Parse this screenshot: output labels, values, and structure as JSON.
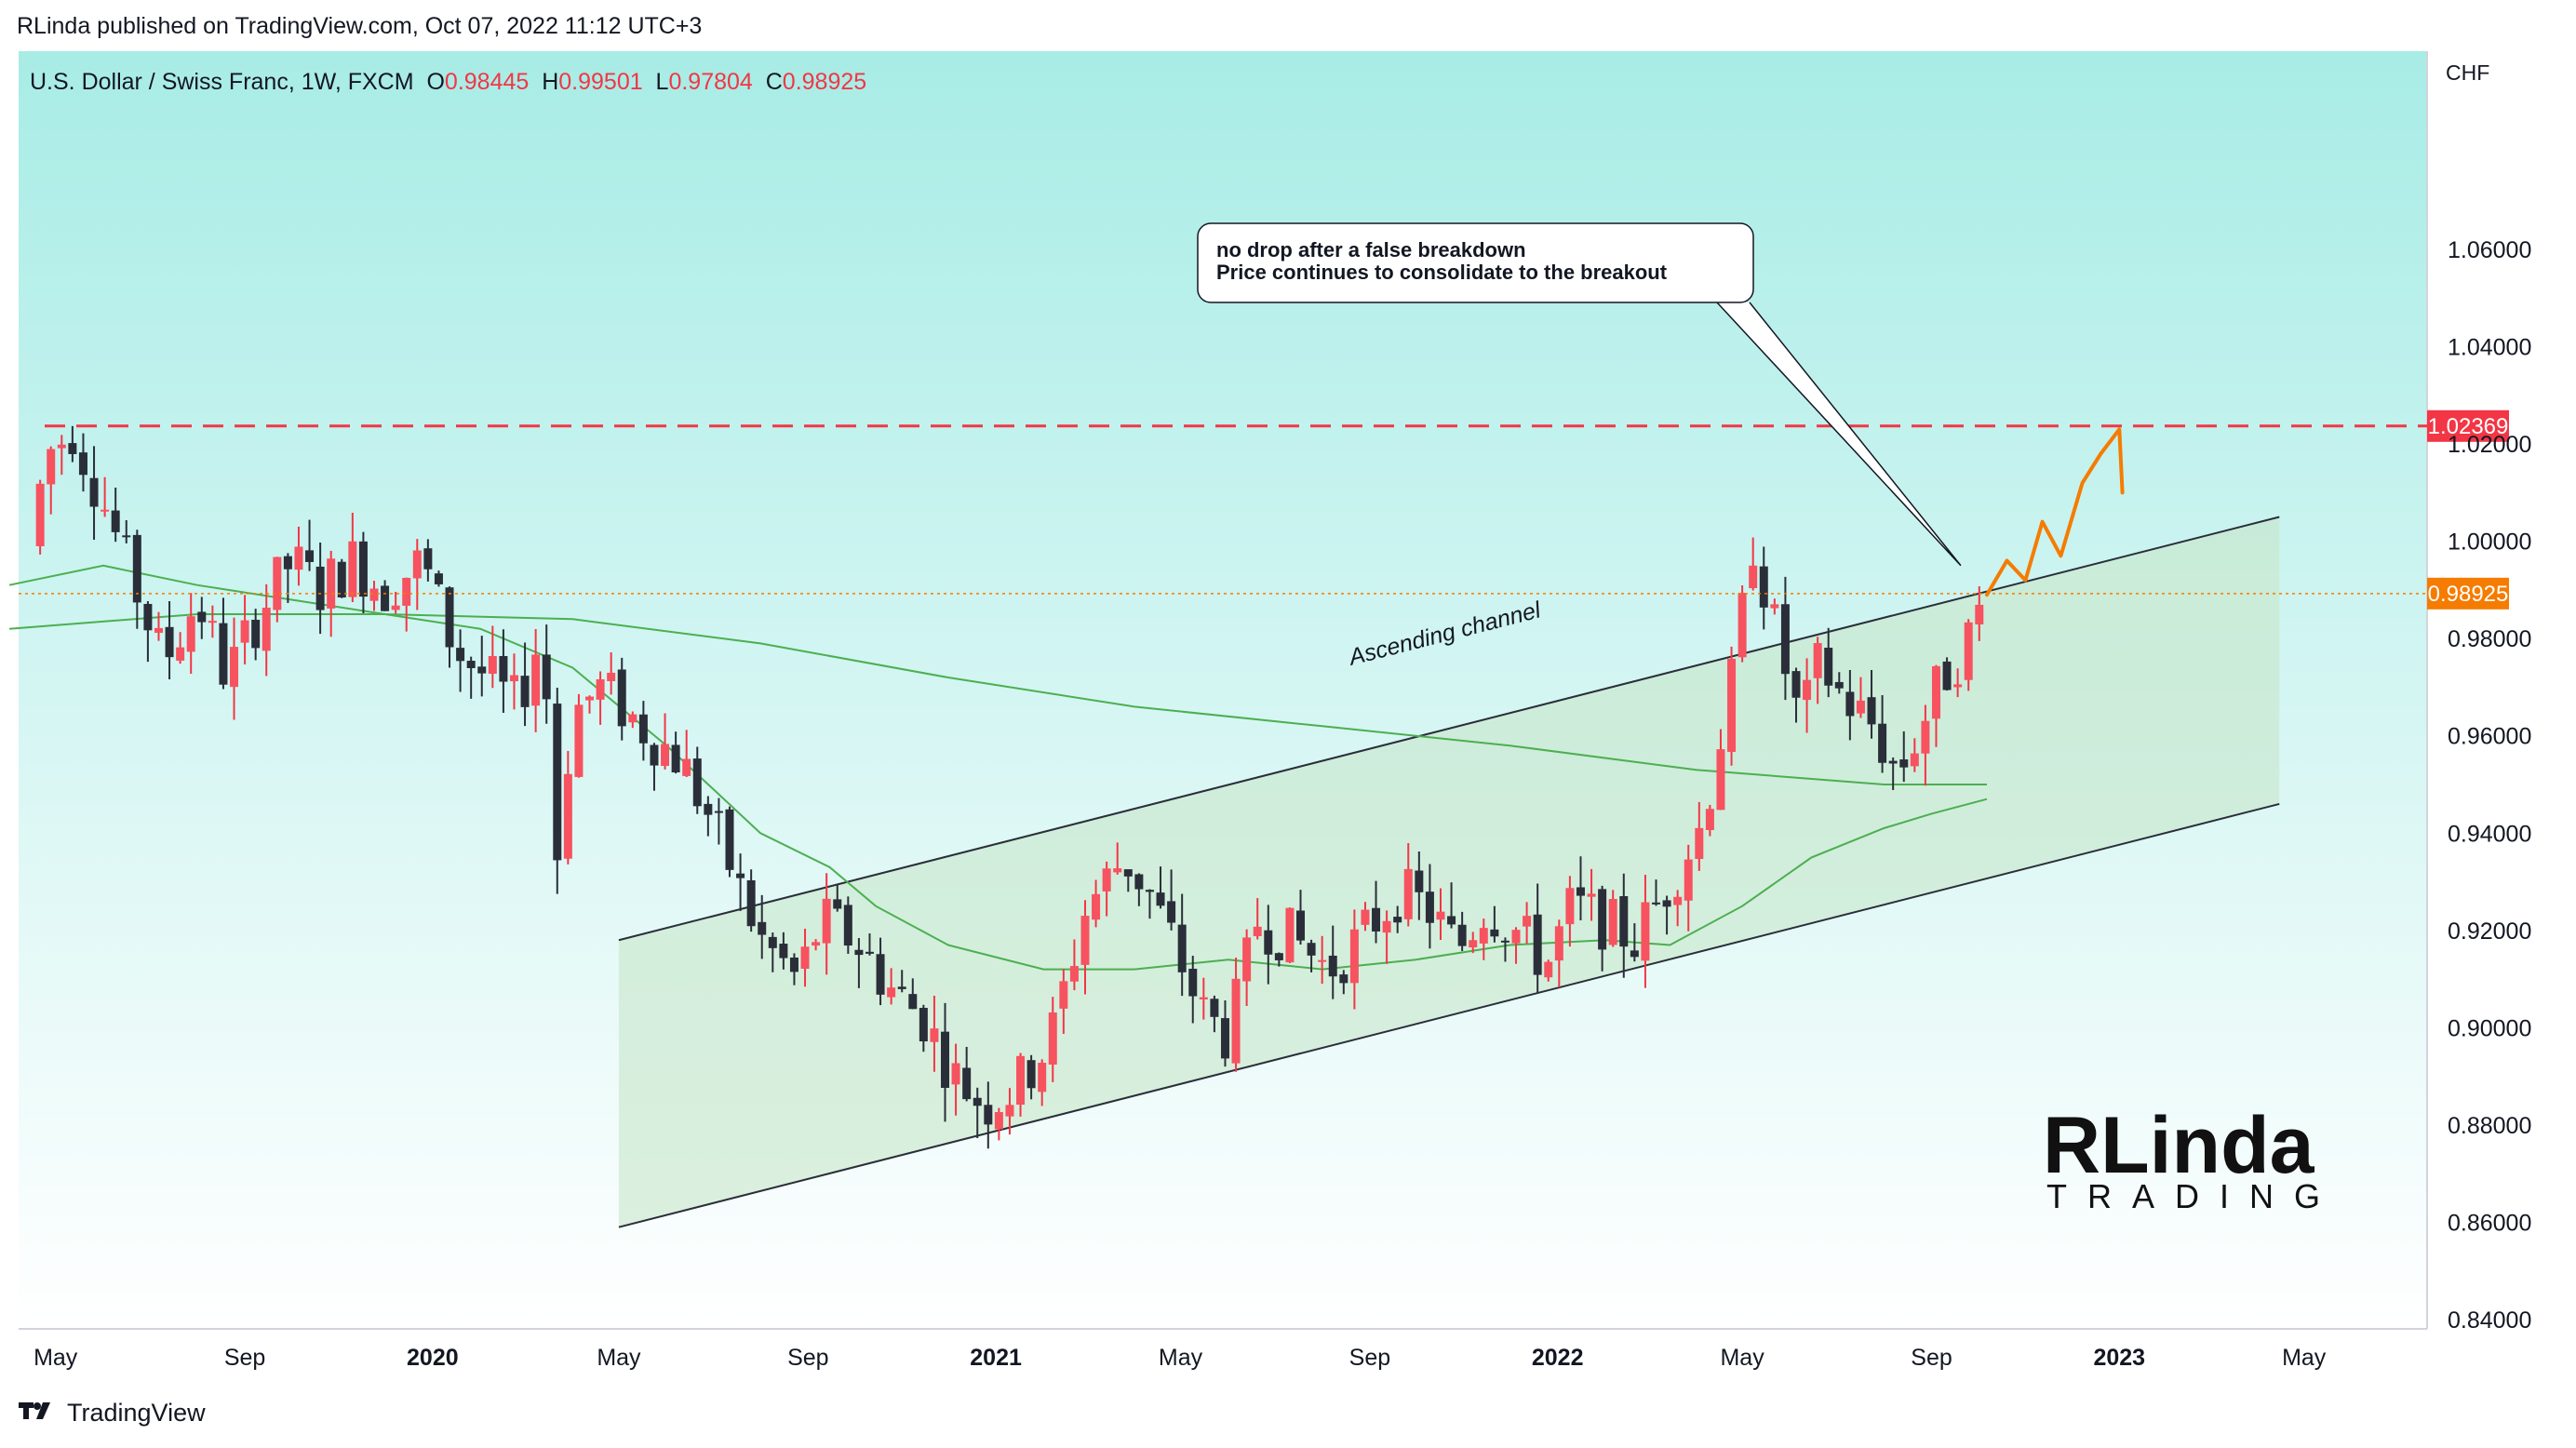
{
  "header": {
    "published": "RLinda published on TradingView.com, Oct 07, 2022 11:12 UTC+3"
  },
  "legend": {
    "symbol": "U.S. Dollar / Swiss Franc, 1W, FXCM",
    "o_label": "O",
    "o_value": "0.98445",
    "h_label": "H",
    "h_value": "0.99501",
    "l_label": "L",
    "l_value": "0.97804",
    "c_label": "C",
    "c_value": "0.98925"
  },
  "footer": {
    "brand": "TradingView",
    "logo_icon": "tradingview-logo-icon"
  },
  "watermark": {
    "line1": "RLinda",
    "line2": "TRADING"
  },
  "colors": {
    "up": "#f23645",
    "up_body": "#f7525f",
    "down": "#2a2e39",
    "ma": "#4caf50",
    "resistance": "#f23645",
    "last_price": "#f57c00",
    "channel_fill": "#c8e6c9",
    "bg_top": "#a8ece6",
    "bg_bottom": "#ffffff"
  },
  "chart_data": {
    "type": "candlestick",
    "unit": "CHF",
    "ylim": [
      0.84,
      1.07
    ],
    "y_ticks": [
      "1.06000",
      "1.04000",
      "1.02000",
      "1.00000",
      "0.98000",
      "0.96000",
      "0.94000",
      "0.92000",
      "0.90000",
      "0.88000",
      "0.86000",
      "0.84000"
    ],
    "y_tick_values": [
      1.06,
      1.04,
      1.02,
      1.0,
      0.98,
      0.96,
      0.94,
      0.92,
      0.9,
      0.88,
      0.86,
      0.84
    ],
    "x_ticks": [
      {
        "label": "May",
        "date": "2019-05-01",
        "bold": false
      },
      {
        "label": "Sep",
        "date": "2019-09-01",
        "bold": false
      },
      {
        "label": "2020",
        "date": "2020-01-01",
        "bold": true
      },
      {
        "label": "May",
        "date": "2020-05-01",
        "bold": false
      },
      {
        "label": "Sep",
        "date": "2020-09-01",
        "bold": false
      },
      {
        "label": "2021",
        "date": "2021-01-01",
        "bold": true
      },
      {
        "label": "May",
        "date": "2021-05-01",
        "bold": false
      },
      {
        "label": "Sep",
        "date": "2021-09-01",
        "bold": false
      },
      {
        "label": "2022",
        "date": "2022-01-01",
        "bold": true
      },
      {
        "label": "May",
        "date": "2022-05-01",
        "bold": false
      },
      {
        "label": "Sep",
        "date": "2022-09-01",
        "bold": false
      },
      {
        "label": "2023",
        "date": "2023-01-01",
        "bold": true
      },
      {
        "label": "May",
        "date": "2023-05-01",
        "bold": false
      }
    ],
    "price_points": [
      [
        "2019-04-14",
        0.999
      ],
      [
        "2019-04-25",
        1.018
      ],
      [
        "2019-05-12",
        1.023
      ],
      [
        "2019-06-01",
        1.008
      ],
      [
        "2019-06-20",
        0.992
      ],
      [
        "2019-07-10",
        0.975
      ],
      [
        "2019-08-01",
        0.988
      ],
      [
        "2019-08-20",
        0.972
      ],
      [
        "2019-09-10",
        0.985
      ],
      [
        "2019-10-01",
        0.996
      ],
      [
        "2019-10-20",
        0.99
      ],
      [
        "2019-11-10",
        0.996
      ],
      [
        "2019-12-01",
        0.99
      ],
      [
        "2019-12-25",
        0.996
      ],
      [
        "2020-01-15",
        0.978
      ],
      [
        "2020-02-05",
        0.972
      ],
      [
        "2020-02-25",
        0.966
      ],
      [
        "2020-03-12",
        0.982
      ],
      [
        "2020-03-22",
        0.936
      ],
      [
        "2020-04-01",
        0.965
      ],
      [
        "2020-04-20",
        0.97
      ],
      [
        "2020-05-15",
        0.962
      ],
      [
        "2020-06-10",
        0.955
      ],
      [
        "2020-07-01",
        0.942
      ],
      [
        "2020-08-01",
        0.918
      ],
      [
        "2020-08-25",
        0.91
      ],
      [
        "2020-09-10",
        0.922
      ],
      [
        "2020-10-01",
        0.918
      ],
      [
        "2020-10-25",
        0.908
      ],
      [
        "2020-11-15",
        0.902
      ],
      [
        "2020-12-05",
        0.89
      ],
      [
        "2020-12-25",
        0.884
      ],
      [
        "2021-01-15",
        0.888
      ],
      [
        "2021-02-05",
        0.897
      ],
      [
        "2021-03-01",
        0.925
      ],
      [
        "2021-03-25",
        0.935
      ],
      [
        "2021-04-10",
        0.928
      ],
      [
        "2021-04-25",
        0.918
      ],
      [
        "2021-05-15",
        0.903
      ],
      [
        "2021-06-01",
        0.898
      ],
      [
        "2021-06-20",
        0.922
      ],
      [
        "2021-07-15",
        0.918
      ],
      [
        "2021-08-05",
        0.912
      ],
      [
        "2021-08-25",
        0.918
      ],
      [
        "2021-09-20",
        0.928
      ],
      [
        "2021-10-10",
        0.924
      ],
      [
        "2021-10-28",
        0.916
      ],
      [
        "2021-11-15",
        0.925
      ],
      [
        "2021-12-05",
        0.92
      ],
      [
        "2021-12-25",
        0.913
      ],
      [
        "2022-01-10",
        0.925
      ],
      [
        "2022-01-30",
        0.922
      ],
      [
        "2022-02-20",
        0.918
      ],
      [
        "2022-03-15",
        0.93
      ],
      [
        "2022-04-05",
        0.942
      ],
      [
        "2022-04-25",
        0.972
      ],
      [
        "2022-05-08",
        1.0
      ],
      [
        "2022-05-22",
        0.982
      ],
      [
        "2022-06-08",
        0.962
      ],
      [
        "2022-06-20",
        0.975
      ],
      [
        "2022-07-05",
        0.968
      ],
      [
        "2022-07-25",
        0.962
      ],
      [
        "2022-08-10",
        0.952
      ],
      [
        "2022-08-25",
        0.962
      ],
      [
        "2022-09-08",
        0.972
      ],
      [
        "2022-09-22",
        0.978
      ],
      [
        "2022-10-07",
        0.98925
      ]
    ],
    "ma_fast_points": [
      [
        "2019-04-01",
        0.991
      ],
      [
        "2019-06-01",
        0.995
      ],
      [
        "2019-08-01",
        0.991
      ],
      [
        "2019-10-01",
        0.988
      ],
      [
        "2019-12-01",
        0.985
      ],
      [
        "2020-02-01",
        0.982
      ],
      [
        "2020-04-01",
        0.974
      ],
      [
        "2020-06-01",
        0.958
      ],
      [
        "2020-08-01",
        0.94
      ],
      [
        "2020-09-15",
        0.933
      ],
      [
        "2020-10-15",
        0.925
      ],
      [
        "2020-12-01",
        0.917
      ],
      [
        "2021-02-01",
        0.912
      ],
      [
        "2021-04-01",
        0.912
      ],
      [
        "2021-06-01",
        0.914
      ],
      [
        "2021-08-01",
        0.912
      ],
      [
        "2021-10-01",
        0.914
      ],
      [
        "2021-12-01",
        0.917
      ],
      [
        "2022-02-01",
        0.918
      ],
      [
        "2022-03-15",
        0.917
      ],
      [
        "2022-05-01",
        0.925
      ],
      [
        "2022-06-15",
        0.935
      ],
      [
        "2022-08-01",
        0.941
      ],
      [
        "2022-09-01",
        0.944
      ],
      [
        "2022-10-07",
        0.947
      ]
    ],
    "ma_slow_points": [
      [
        "2019-04-01",
        0.982
      ],
      [
        "2019-08-01",
        0.985
      ],
      [
        "2019-12-01",
        0.985
      ],
      [
        "2020-04-01",
        0.984
      ],
      [
        "2020-08-01",
        0.979
      ],
      [
        "2020-12-01",
        0.972
      ],
      [
        "2021-04-01",
        0.966
      ],
      [
        "2021-08-01",
        0.962
      ],
      [
        "2021-12-01",
        0.958
      ],
      [
        "2022-04-01",
        0.953
      ],
      [
        "2022-08-01",
        0.95
      ],
      [
        "2022-10-07",
        0.95
      ]
    ],
    "channel": {
      "upper": [
        [
          "2020-05-01",
          0.918
        ],
        [
          "2023-04-15",
          1.005
        ]
      ],
      "lower": [
        [
          "2020-05-01",
          0.859
        ],
        [
          "2023-04-15",
          0.946
        ]
      ],
      "label": "Ascending channel"
    },
    "resistance": {
      "value": 1.02369,
      "label": "1.02369"
    },
    "last_price": {
      "value": 0.98925,
      "label": "0.98925"
    },
    "projection": [
      [
        "2022-10-07",
        0.989
      ],
      [
        "2022-10-20",
        0.996
      ],
      [
        "2022-11-01",
        0.992
      ],
      [
        "2022-11-12",
        1.004
      ],
      [
        "2022-11-24",
        0.997
      ],
      [
        "2022-12-08",
        1.012
      ],
      [
        "2022-12-20",
        1.018
      ],
      [
        "2023-01-01",
        1.023
      ],
      [
        "2023-01-03",
        1.01
      ]
    ],
    "annotation": {
      "lines": [
        "no drop after a false breakdown",
        "Price continues to consolidate to the breakout"
      ],
      "pointer": [
        "2022-09-20",
        0.995
      ]
    }
  }
}
